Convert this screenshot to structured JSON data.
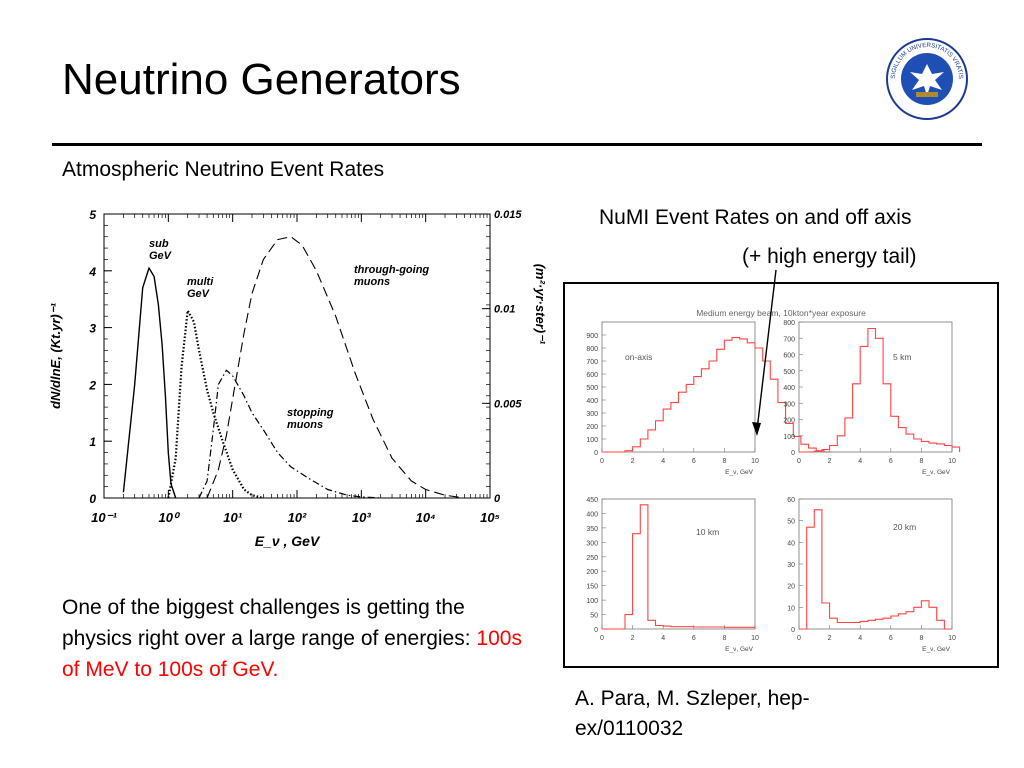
{
  "slide": {
    "title": "Neutrino Generators",
    "subtitle": "Atmospheric Neutrino Event Rates",
    "numi_caption_line1": "NuMI Event Rates on and off axis",
    "numi_caption_line2": "(+ high energy tail)",
    "paragraph_text": "One of the biggest challenges is getting the physics right over a large range of energies: ",
    "paragraph_highlight": "100s of MeV to 100s of GeV.",
    "citation": "A. Para, M. Szleper, hep-ex/0110032",
    "highlight_color": "#ff0000"
  },
  "seal": {
    "icon": "university-seal-icon",
    "text": "SIGILLUM UNIVERSITATIS VRATISLAVIENSIS PAX ET LUX"
  },
  "chart_data": [
    {
      "type": "line",
      "xlabel": "E_ν , GeV",
      "ylabel": "dN/dlnE, (Kt.yr)⁻¹",
      "y2label": "(m²·yr·ster)⁻¹",
      "x_scale": "log",
      "xlim": [
        0.1,
        100000
      ],
      "ylim": [
        0,
        5
      ],
      "y2lim": [
        0,
        0.015
      ],
      "x_ticks": [
        "10⁻¹",
        "10⁰",
        "10¹",
        "10²",
        "10³",
        "10⁴",
        "10⁵"
      ],
      "y_ticks": [
        "0",
        "1",
        "2",
        "3",
        "4",
        "5"
      ],
      "y2_ticks": [
        "0",
        "0.005",
        "0.01",
        "0.015"
      ],
      "grid": false,
      "series": [
        {
          "name": "sub GeV",
          "label_lines": [
            "sub",
            "GeV"
          ],
          "style": "solid",
          "x": [
            0.2,
            0.3,
            0.4,
            0.5,
            0.6,
            0.7,
            0.8,
            0.9,
            1.0,
            1.1,
            1.3
          ],
          "y": [
            0.1,
            2.0,
            3.7,
            4.05,
            3.9,
            3.4,
            2.7,
            1.8,
            0.8,
            0.25,
            0.0
          ]
        },
        {
          "name": "multi GeV",
          "label_lines": [
            "multi",
            "GeV"
          ],
          "style": "dotted",
          "x": [
            1.0,
            1.3,
            1.6,
            2.0,
            2.5,
            3.0,
            4.0,
            5.0,
            7.0,
            10,
            15,
            20,
            30
          ],
          "y": [
            0.0,
            0.7,
            2.3,
            3.3,
            3.1,
            2.6,
            1.9,
            1.5,
            1.0,
            0.5,
            0.15,
            0.05,
            0.0
          ]
        },
        {
          "name": "stopping muons",
          "label_lines": [
            "stopping",
            "muons"
          ],
          "style": "dashdot",
          "x": [
            3,
            4,
            5,
            6,
            8,
            10,
            15,
            20,
            30,
            50,
            80,
            150,
            300,
            600,
            1000,
            2000
          ],
          "y": [
            0.0,
            0.3,
            1.2,
            2.0,
            2.25,
            2.15,
            1.8,
            1.5,
            1.2,
            0.8,
            0.55,
            0.35,
            0.15,
            0.05,
            0.02,
            0.0
          ]
        },
        {
          "name": "through-going muons",
          "label_lines": [
            "through-going",
            "muons"
          ],
          "style": "dashed",
          "x": [
            4,
            6,
            8,
            10,
            15,
            20,
            30,
            50,
            80,
            120,
            200,
            400,
            800,
            1500,
            3000,
            6000,
            10000,
            20000,
            40000
          ],
          "y": [
            0.0,
            0.5,
            1.1,
            1.75,
            2.9,
            3.6,
            4.2,
            4.55,
            4.6,
            4.45,
            4.0,
            3.2,
            2.2,
            1.4,
            0.7,
            0.3,
            0.15,
            0.05,
            0.0
          ]
        }
      ]
    },
    {
      "type": "bar",
      "title": "Medium energy beam, 10kton*year exposure",
      "panels": [
        {
          "label": "on-axis",
          "xlabel": "E_ν, GeV",
          "xlim": [
            0,
            10
          ],
          "ylim": [
            0,
            1000
          ],
          "y_ticks": [
            0,
            100,
            200,
            300,
            400,
            500,
            600,
            700,
            800,
            900
          ],
          "x_ticks": [
            0,
            2,
            4,
            6,
            8,
            10
          ],
          "bin_width": 0.5,
          "values": [
            0,
            0,
            0,
            10,
            40,
            100,
            170,
            240,
            330,
            380,
            460,
            520,
            580,
            640,
            700,
            790,
            860,
            880,
            870,
            840,
            800,
            700,
            560,
            380,
            220,
            120,
            60,
            30,
            10,
            0
          ]
        },
        {
          "label": "5 km",
          "xlabel": "E_ν, GeV",
          "xlim": [
            0,
            10
          ],
          "ylim": [
            0,
            800
          ],
          "y_ticks": [
            0,
            100,
            200,
            300,
            400,
            500,
            600,
            700,
            800
          ],
          "x_ticks": [
            0,
            2,
            4,
            6,
            8,
            10
          ],
          "bin_width": 0.5,
          "values": [
            0,
            0,
            5,
            15,
            40,
            100,
            210,
            420,
            650,
            760,
            700,
            420,
            220,
            150,
            110,
            80,
            65,
            55,
            50,
            40,
            30
          ]
        },
        {
          "label": "10 km",
          "xlabel": "E_ν, GeV",
          "xlim": [
            0,
            10
          ],
          "ylim": [
            0,
            450
          ],
          "y_ticks": [
            0,
            50,
            100,
            150,
            200,
            250,
            300,
            350,
            400,
            450
          ],
          "x_ticks": [
            0,
            2,
            4,
            6,
            8,
            10
          ],
          "bin_width": 0.5,
          "values": [
            0,
            0,
            0,
            50,
            330,
            430,
            30,
            12,
            10,
            8,
            8,
            8,
            7,
            7,
            7,
            7,
            6,
            6,
            6,
            6
          ]
        },
        {
          "label": "20 km",
          "xlabel": "E_ν, GeV",
          "xlim": [
            0,
            10
          ],
          "ylim": [
            0,
            60
          ],
          "y_ticks": [
            0,
            10,
            20,
            30,
            40,
            50,
            60
          ],
          "x_ticks": [
            0,
            2,
            4,
            6,
            8,
            10
          ],
          "bin_width": 0.5,
          "values": [
            0,
            47,
            55,
            12,
            5,
            3,
            3,
            3,
            3.5,
            4,
            4.5,
            5,
            6,
            7,
            8,
            10,
            13,
            10,
            4,
            0
          ]
        }
      ]
    }
  ]
}
